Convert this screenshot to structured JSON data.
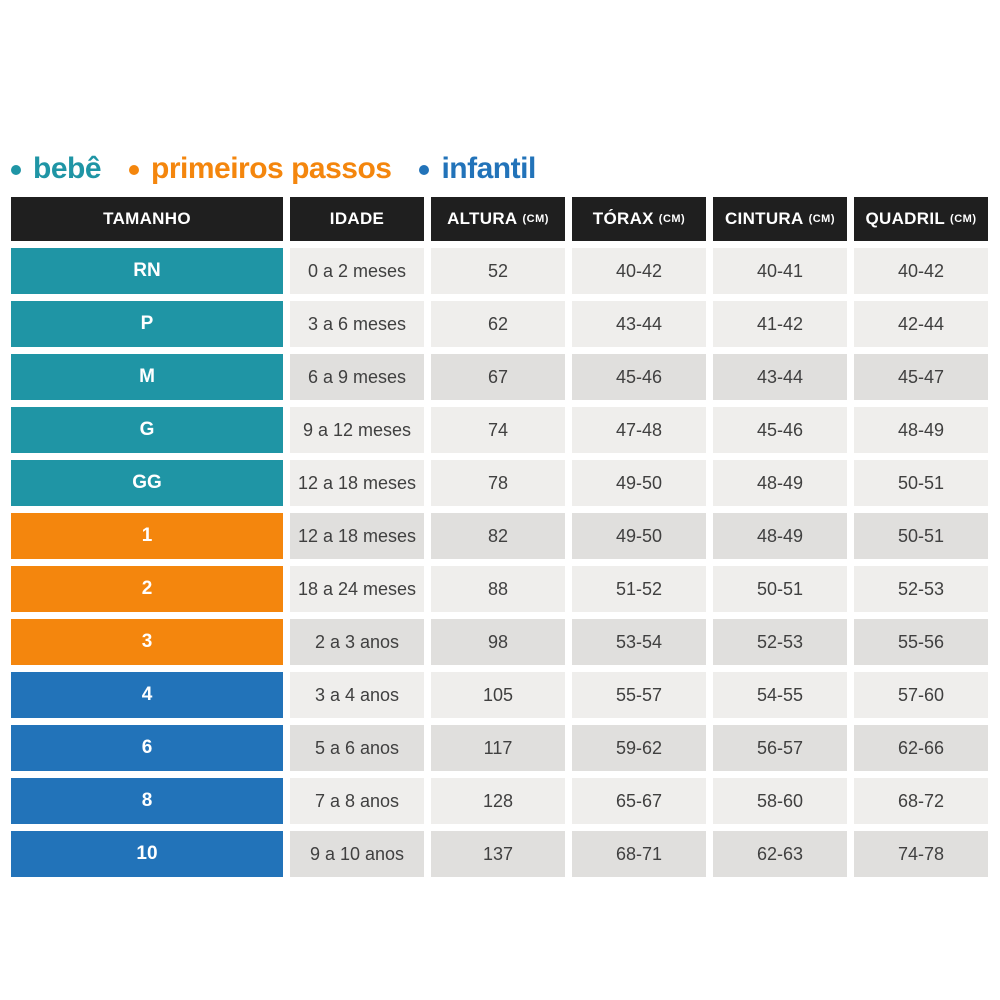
{
  "legend": {
    "items": [
      {
        "id": "bebe",
        "label": "bebê",
        "color": "#1f95a5"
      },
      {
        "id": "primeiros-passos",
        "label": "primeiros passos",
        "color": "#f4860d"
      },
      {
        "id": "infantil",
        "label": "infantil",
        "color": "#2273b9"
      }
    ]
  },
  "chart_data": {
    "type": "table",
    "columns": [
      {
        "id": "tamanho",
        "label": "TAMANHO",
        "unit": ""
      },
      {
        "id": "idade",
        "label": "IDADE",
        "unit": ""
      },
      {
        "id": "altura",
        "label": "ALTURA",
        "unit": "(CM)"
      },
      {
        "id": "torax",
        "label": "TÓRAX",
        "unit": "(CM)"
      },
      {
        "id": "cintura",
        "label": "CINTURA",
        "unit": "(CM)"
      },
      {
        "id": "quadril",
        "label": "QUADRIL",
        "unit": "(CM)"
      }
    ],
    "rows": [
      {
        "size": "RN",
        "group": "bebe",
        "shade": "light",
        "cells": [
          "0 a 2 meses",
          "52",
          "40-42",
          "40-41",
          "40-42"
        ]
      },
      {
        "size": "P",
        "group": "bebe",
        "shade": "light",
        "cells": [
          "3 a 6 meses",
          "62",
          "43-44",
          "41-42",
          "42-44"
        ]
      },
      {
        "size": "M",
        "group": "bebe",
        "shade": "dark",
        "cells": [
          "6 a 9 meses",
          "67",
          "45-46",
          "43-44",
          "45-47"
        ]
      },
      {
        "size": "G",
        "group": "bebe",
        "shade": "light",
        "cells": [
          "9 a 12 meses",
          "74",
          "47-48",
          "45-46",
          "48-49"
        ]
      },
      {
        "size": "GG",
        "group": "bebe",
        "shade": "light",
        "cells": [
          "12 a 18 meses",
          "78",
          "49-50",
          "48-49",
          "50-51"
        ]
      },
      {
        "size": "1",
        "group": "primeiros-passos",
        "shade": "dark",
        "cells": [
          "12 a 18 meses",
          "82",
          "49-50",
          "48-49",
          "50-51"
        ]
      },
      {
        "size": "2",
        "group": "primeiros-passos",
        "shade": "light",
        "cells": [
          "18 a 24 meses",
          "88",
          "51-52",
          "50-51",
          "52-53"
        ]
      },
      {
        "size": "3",
        "group": "primeiros-passos",
        "shade": "dark",
        "cells": [
          "2 a 3 anos",
          "98",
          "53-54",
          "52-53",
          "55-56"
        ]
      },
      {
        "size": "4",
        "group": "infantil",
        "shade": "light",
        "cells": [
          "3 a 4 anos",
          "105",
          "55-57",
          "54-55",
          "57-60"
        ]
      },
      {
        "size": "6",
        "group": "infantil",
        "shade": "dark",
        "cells": [
          "5 a 6 anos",
          "117",
          "59-62",
          "56-57",
          "62-66"
        ]
      },
      {
        "size": "8",
        "group": "infantil",
        "shade": "light",
        "cells": [
          "7 a 8 anos",
          "128",
          "65-67",
          "58-60",
          "68-72"
        ]
      },
      {
        "size": "10",
        "group": "infantil",
        "shade": "dark",
        "cells": [
          "9 a 10 anos",
          "137",
          "68-71",
          "62-63",
          "74-78"
        ]
      }
    ]
  },
  "colors": {
    "group": {
      "bebe": "#1f95a5",
      "primeiros-passos": "#f4860d",
      "infantil": "#2273b9"
    },
    "header_bg": "#1f1f1f",
    "header_text": "#ffffff",
    "row_light": "#efeeec",
    "row_dark": "#e0dfdd",
    "cell_text": "#404040",
    "page_bg": "#ffffff"
  }
}
